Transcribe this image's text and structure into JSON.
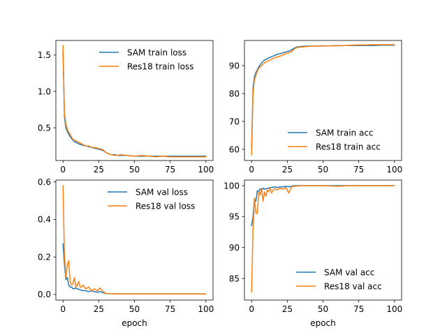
{
  "figure": {
    "background": "#ffffff"
  },
  "colors": {
    "sam": "#1f77b4",
    "res18": "#ff7f0e",
    "axis": "#000000"
  },
  "chart_data": [
    {
      "type": "line",
      "xlabel": "",
      "ylabel": "",
      "xlim": [
        -5,
        105
      ],
      "ylim": [
        0.05,
        1.7
      ],
      "xticks": [
        0,
        25,
        50,
        75,
        100
      ],
      "yticks": [
        0.5,
        1.0,
        1.5
      ],
      "ytick_labels": [
        "0.5",
        "1.0",
        "1.5"
      ],
      "legend": "upper right",
      "series": [
        {
          "name": "SAM train loss",
          "color": "#1f77b4",
          "x": [
            0,
            1,
            2,
            3,
            4,
            5,
            6,
            7,
            8,
            9,
            10,
            12,
            14,
            16,
            18,
            20,
            22,
            24,
            26,
            28,
            30,
            32,
            34,
            36,
            38,
            40,
            45,
            50,
            55,
            60,
            65,
            70,
            75,
            80,
            85,
            90,
            95,
            100
          ],
          "y": [
            1.55,
            0.65,
            0.5,
            0.45,
            0.41,
            0.38,
            0.35,
            0.33,
            0.31,
            0.3,
            0.29,
            0.27,
            0.26,
            0.25,
            0.24,
            0.23,
            0.22,
            0.21,
            0.2,
            0.19,
            0.16,
            0.14,
            0.13,
            0.13,
            0.12,
            0.12,
            0.12,
            0.11,
            0.11,
            0.11,
            0.11,
            0.11,
            0.11,
            0.11,
            0.11,
            0.11,
            0.11,
            0.11
          ]
        },
        {
          "name": "Res18 train loss",
          "color": "#ff7f0e",
          "x": [
            0,
            1,
            2,
            3,
            4,
            5,
            6,
            7,
            8,
            9,
            10,
            12,
            14,
            16,
            18,
            20,
            22,
            24,
            26,
            28,
            30,
            32,
            34,
            36,
            38,
            40,
            45,
            50,
            55,
            60,
            65,
            70,
            75,
            80,
            85,
            90,
            95,
            100
          ],
          "y": [
            1.63,
            0.7,
            0.55,
            0.48,
            0.44,
            0.41,
            0.37,
            0.34,
            0.33,
            0.32,
            0.31,
            0.29,
            0.27,
            0.25,
            0.25,
            0.23,
            0.23,
            0.22,
            0.21,
            0.2,
            0.16,
            0.14,
            0.13,
            0.12,
            0.12,
            0.13,
            0.12,
            0.11,
            0.12,
            0.11,
            0.1,
            0.11,
            0.1,
            0.1,
            0.1,
            0.1,
            0.1,
            0.1
          ]
        }
      ]
    },
    {
      "type": "line",
      "xlabel": "",
      "ylabel": "",
      "xlim": [
        -5,
        105
      ],
      "ylim": [
        56,
        99
      ],
      "xticks": [
        0,
        25,
        50,
        75,
        100
      ],
      "yticks": [
        60,
        70,
        80,
        90
      ],
      "ytick_labels": [
        "60",
        "70",
        "80",
        "90"
      ],
      "legend": "lower right",
      "series": [
        {
          "name": "SAM train acc",
          "color": "#1f77b4",
          "x": [
            0,
            1,
            2,
            3,
            4,
            5,
            6,
            7,
            8,
            9,
            10,
            12,
            14,
            16,
            18,
            20,
            22,
            24,
            26,
            28,
            30,
            32,
            34,
            36,
            38,
            40,
            45,
            50,
            55,
            60,
            65,
            70,
            75,
            80,
            85,
            90,
            95,
            100
          ],
          "y": [
            60,
            82,
            86,
            87.5,
            88.5,
            89.5,
            90.2,
            91,
            91.5,
            92,
            92.2,
            92.8,
            93.2,
            93.6,
            94,
            94.3,
            94.6,
            94.9,
            95.2,
            95.6,
            96.3,
            96.7,
            96.8,
            96.9,
            97,
            97,
            97,
            97.1,
            97.1,
            97.2,
            97.2,
            97.2,
            97.2,
            97.2,
            97.2,
            97.3,
            97.3,
            97.3
          ]
        },
        {
          "name": "Res18 train acc",
          "color": "#ff7f0e",
          "x": [
            0,
            1,
            2,
            3,
            4,
            5,
            6,
            7,
            8,
            9,
            10,
            12,
            14,
            16,
            18,
            20,
            22,
            24,
            26,
            28,
            30,
            32,
            34,
            36,
            38,
            40,
            45,
            50,
            55,
            60,
            65,
            70,
            75,
            80,
            85,
            90,
            95,
            100
          ],
          "y": [
            58,
            80,
            85,
            86.5,
            88,
            89,
            89.5,
            90,
            90.5,
            91,
            91.3,
            91.8,
            92.3,
            92.8,
            93.1,
            93.4,
            93.8,
            94.3,
            94.6,
            95,
            96,
            96.5,
            96.6,
            96.7,
            96.8,
            96.9,
            97,
            97,
            97.1,
            97.1,
            97.2,
            97.3,
            97.4,
            97.4,
            97.5,
            97.5,
            97.5,
            97.5
          ]
        }
      ]
    },
    {
      "type": "line",
      "xlabel": "epoch",
      "ylabel": "",
      "xlim": [
        -5,
        105
      ],
      "ylim": [
        -0.03,
        0.61
      ],
      "xticks": [
        0,
        25,
        50,
        75,
        100
      ],
      "yticks": [
        0.0,
        0.2,
        0.4,
        0.6
      ],
      "ytick_labels": [
        "0.0",
        "0.2",
        "0.4",
        "0.6"
      ],
      "legend": "upper right",
      "series": [
        {
          "name": "SAM val loss",
          "color": "#1f77b4",
          "x": [
            0,
            1,
            2,
            3,
            4,
            5,
            6,
            7,
            8,
            9,
            10,
            12,
            14,
            16,
            18,
            20,
            22,
            24,
            26,
            28,
            30,
            35,
            40,
            50,
            60,
            70,
            80,
            90,
            100
          ],
          "y": [
            0.27,
            0.16,
            0.08,
            0.09,
            0.05,
            0.04,
            0.04,
            0.03,
            0.03,
            0.035,
            0.03,
            0.025,
            0.02,
            0.02,
            0.015,
            0.02,
            0.015,
            0.012,
            0.015,
            0.01,
            0.005,
            0.004,
            0.003,
            0.003,
            0.003,
            0.003,
            0.003,
            0.003,
            0.003
          ]
        },
        {
          "name": "Res18 val loss",
          "color": "#ff7f0e",
          "x": [
            0,
            1,
            2,
            3,
            4,
            5,
            6,
            7,
            8,
            9,
            10,
            11,
            12,
            13,
            14,
            16,
            18,
            20,
            22,
            24,
            26,
            28,
            30,
            35,
            40,
            50,
            60,
            70,
            80,
            90,
            100
          ],
          "y": [
            0.58,
            0.21,
            0.09,
            0.16,
            0.18,
            0.07,
            0.05,
            0.06,
            0.09,
            0.04,
            0.05,
            0.07,
            0.04,
            0.04,
            0.05,
            0.03,
            0.04,
            0.02,
            0.03,
            0.02,
            0.035,
            0.015,
            0.006,
            0.004,
            0.003,
            0.003,
            0.003,
            0.003,
            0.003,
            0.003,
            0.003
          ]
        }
      ]
    },
    {
      "type": "line",
      "xlabel": "epoch",
      "ylabel": "",
      "xlim": [
        -5,
        105
      ],
      "ylim": [
        81.5,
        100.9
      ],
      "xticks": [
        0,
        25,
        50,
        75,
        100
      ],
      "yticks": [
        85,
        90,
        95,
        100
      ],
      "ytick_labels": [
        "85",
        "90",
        "95",
        "100"
      ],
      "legend": "lower right",
      "series": [
        {
          "name": "SAM val acc",
          "color": "#1f77b4",
          "x": [
            0,
            1,
            2,
            3,
            4,
            5,
            6,
            7,
            8,
            9,
            10,
            12,
            14,
            16,
            18,
            20,
            22,
            24,
            26,
            28,
            30,
            35,
            40,
            50,
            60,
            70,
            80,
            90,
            100
          ],
          "y": [
            93.5,
            95,
            97.8,
            97.5,
            99.2,
            99,
            99.5,
            99.3,
            99.6,
            99.4,
            99.5,
            99.6,
            99.7,
            99.8,
            99.7,
            99.8,
            99.8,
            99.9,
            99.8,
            99.9,
            100,
            100,
            100,
            100,
            100,
            100,
            100,
            100,
            100
          ]
        },
        {
          "name": "Res18 val acc",
          "color": "#ff7f0e",
          "x": [
            0,
            1,
            2,
            3,
            4,
            5,
            6,
            7,
            8,
            9,
            10,
            11,
            12,
            13,
            14,
            15,
            16,
            18,
            20,
            22,
            24,
            26,
            28,
            30,
            35,
            40,
            50,
            60,
            70,
            80,
            90,
            100
          ],
          "y": [
            82.8,
            93,
            98,
            95.5,
            95.5,
            99,
            98.5,
            99.5,
            97.5,
            99,
            98.3,
            99.3,
            99,
            99.6,
            98.8,
            99.2,
            99.5,
            99.3,
            99.6,
            99.4,
            99.7,
            98.8,
            99.8,
            99.9,
            100,
            100,
            100,
            99.9,
            100,
            100,
            100,
            100
          ]
        }
      ]
    }
  ]
}
